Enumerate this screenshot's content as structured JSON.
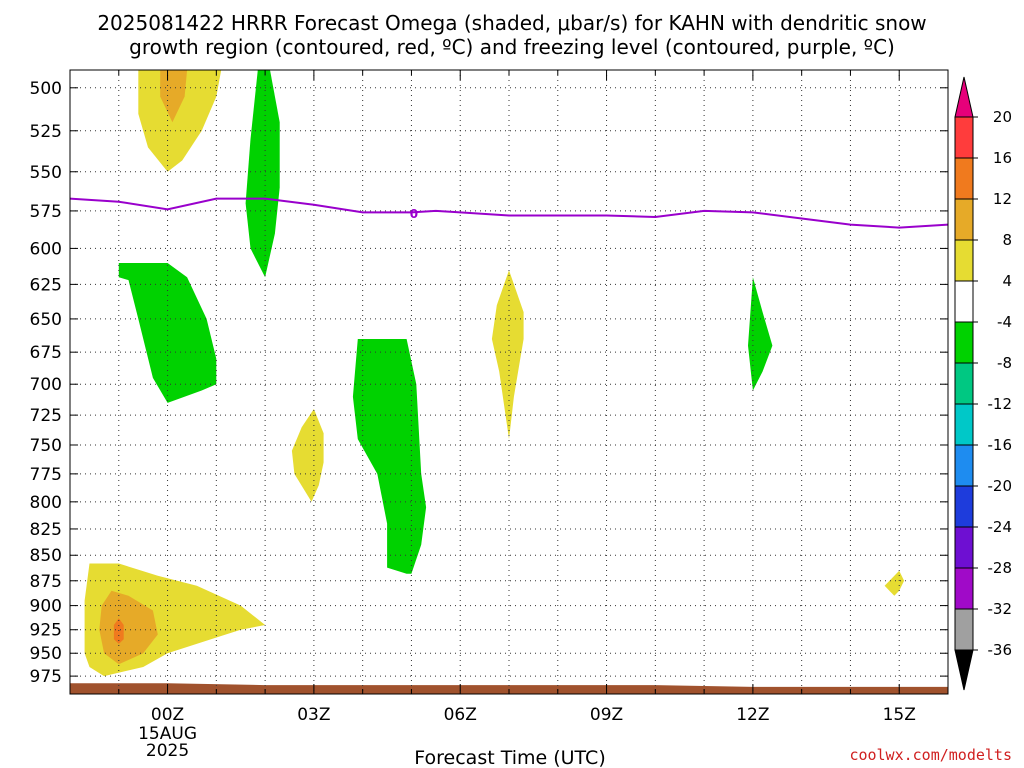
{
  "title": {
    "line1": "2025081422 HRRR Forecast Omega (shaded, μbar/s) for KAHN with dendritic snow",
    "line2": "growth region (contoured, red, ºC) and freezing level (contoured, purple, ºC)"
  },
  "credit": "coolwx.com/modelts",
  "chart_data": {
    "type": "heatmap",
    "xlabel": "Forecast Time (UTC)",
    "x_ticks": [
      {
        "hour": 0,
        "label": "00Z",
        "sub": [
          "15AUG",
          "2025"
        ]
      },
      {
        "hour": 3,
        "label": "03Z",
        "sub": []
      },
      {
        "hour": 6,
        "label": "06Z",
        "sub": []
      },
      {
        "hour": 9,
        "label": "09Z",
        "sub": []
      },
      {
        "hour": 12,
        "label": "12Z",
        "sub": []
      },
      {
        "hour": 15,
        "label": "15Z",
        "sub": []
      }
    ],
    "xlim": [
      -2,
      16
    ],
    "y_ticks": [
      500,
      525,
      550,
      575,
      600,
      625,
      650,
      675,
      700,
      725,
      750,
      775,
      800,
      825,
      850,
      875,
      900,
      925,
      950,
      975
    ],
    "ylim": [
      490,
      995
    ],
    "y_scale": "log-pressure",
    "grid": true,
    "colorbar": {
      "labels": [
        "20",
        "16",
        "12",
        "8",
        "4",
        "-4",
        "-8",
        "-12",
        "-16",
        "-20",
        "-24",
        "-28",
        "-32",
        "-36"
      ],
      "colors": [
        "#ff3c3c",
        "#f07a1e",
        "#e6aa28",
        "#e6dc32",
        "#ffffff",
        "#00d200",
        "#00c882",
        "#00c8c8",
        "#1e8cf0",
        "#1e3cdc",
        "#6e0fd2",
        "#a00ac8",
        "#a0a0a0"
      ],
      "top_color": "#e6007a",
      "bottom_color": "#000000"
    },
    "freezing_level": {
      "label": "0",
      "color": "#9900cc",
      "points": [
        [
          -2,
          567
        ],
        [
          -1,
          569
        ],
        [
          0,
          574
        ],
        [
          1,
          567
        ],
        [
          2,
          567
        ],
        [
          3,
          571
        ],
        [
          4,
          576
        ],
        [
          5,
          576
        ],
        [
          5.5,
          575
        ],
        [
          6,
          576
        ],
        [
          7,
          578
        ],
        [
          8,
          578
        ],
        [
          9,
          578
        ],
        [
          10,
          579
        ],
        [
          11,
          575
        ],
        [
          12,
          576
        ],
        [
          13,
          580
        ],
        [
          14,
          584
        ],
        [
          15,
          586
        ],
        [
          16,
          584
        ]
      ]
    },
    "shaded_regions": [
      {
        "value": 4,
        "color": "#e6dc32",
        "points": [
          [
            -0.5,
            490
          ],
          [
            0.3,
            490
          ],
          [
            1.1,
            490
          ],
          [
            1.0,
            505
          ],
          [
            0.7,
            525
          ],
          [
            0.3,
            543
          ],
          [
            0,
            550
          ],
          [
            -0.4,
            535
          ],
          [
            -0.6,
            515
          ],
          [
            -0.6,
            490
          ]
        ]
      },
      {
        "value": 8,
        "color": "#e6aa28",
        "points": [
          [
            -0.15,
            490
          ],
          [
            0.4,
            490
          ],
          [
            0.35,
            505
          ],
          [
            0.1,
            520
          ],
          [
            -0.15,
            505
          ]
        ]
      },
      {
        "value": -4,
        "color": "#00d200",
        "points": [
          [
            1.9,
            490
          ],
          [
            2.1,
            490
          ],
          [
            2.3,
            520
          ],
          [
            2.3,
            560
          ],
          [
            2.2,
            590
          ],
          [
            2,
            620
          ],
          [
            1.7,
            600
          ],
          [
            1.6,
            570
          ],
          [
            1.7,
            530
          ],
          [
            1.85,
            490
          ]
        ]
      },
      {
        "value": -4,
        "color": "#00d200",
        "points": [
          [
            -1,
            610
          ],
          [
            0,
            610
          ],
          [
            0.4,
            620
          ],
          [
            0.8,
            650
          ],
          [
            1,
            680
          ],
          [
            1,
            700
          ],
          [
            0.7,
            705
          ],
          [
            0,
            715
          ],
          [
            -0.3,
            695
          ],
          [
            -0.6,
            650
          ],
          [
            -0.8,
            622
          ],
          [
            -1,
            620
          ]
        ]
      },
      {
        "value": -4,
        "color": "#00d200",
        "points": [
          [
            3.9,
            665
          ],
          [
            4.9,
            665
          ],
          [
            5.1,
            700
          ],
          [
            5.2,
            775
          ],
          [
            5.3,
            805
          ],
          [
            5.2,
            840
          ],
          [
            5.0,
            868
          ],
          [
            4.9,
            868
          ],
          [
            4.5,
            862
          ],
          [
            4.5,
            820
          ],
          [
            4.3,
            775
          ],
          [
            3.9,
            745
          ],
          [
            3.8,
            710
          ]
        ]
      },
      {
        "value": -4,
        "color": "#00d200",
        "points": [
          [
            12,
            620
          ],
          [
            12.2,
            645
          ],
          [
            12.4,
            670
          ],
          [
            12.2,
            690
          ],
          [
            12,
            705
          ],
          [
            11.9,
            670
          ]
        ]
      },
      {
        "value": 4,
        "color": "#e6dc32",
        "points": [
          [
            7,
            615
          ],
          [
            7.3,
            645
          ],
          [
            7.3,
            665
          ],
          [
            7.1,
            710
          ],
          [
            7,
            745
          ],
          [
            6.8,
            690
          ],
          [
            6.65,
            665
          ],
          [
            6.75,
            640
          ]
        ]
      },
      {
        "value": 4,
        "color": "#e6dc32",
        "points": [
          [
            3.0,
            720
          ],
          [
            3.2,
            740
          ],
          [
            3.2,
            765
          ],
          [
            3.1,
            785
          ],
          [
            2.95,
            800
          ],
          [
            2.6,
            775
          ],
          [
            2.55,
            755
          ],
          [
            2.75,
            735
          ]
        ]
      },
      {
        "value": 4,
        "color": "#e6dc32",
        "points": [
          [
            15,
            865
          ],
          [
            15.1,
            875
          ],
          [
            15,
            885
          ],
          [
            14.9,
            890
          ],
          [
            14.7,
            880
          ]
        ]
      },
      {
        "value": 4,
        "color": "#e6dc32",
        "points": [
          [
            -1.6,
            858
          ],
          [
            -1,
            858
          ],
          [
            -0.2,
            870
          ],
          [
            0.6,
            880
          ],
          [
            1.5,
            900
          ],
          [
            2,
            920
          ],
          [
            1.5,
            925
          ],
          [
            0,
            950
          ],
          [
            -0.5,
            965
          ],
          [
            -1.3,
            975
          ],
          [
            -1.6,
            965
          ],
          [
            -1.7,
            950
          ],
          [
            -1.7,
            920
          ],
          [
            -1.7,
            895
          ]
        ]
      },
      {
        "value": 8,
        "color": "#e6aa28",
        "points": [
          [
            -1.15,
            885
          ],
          [
            -0.8,
            890
          ],
          [
            -0.3,
            905
          ],
          [
            -0.2,
            930
          ],
          [
            -0.5,
            950
          ],
          [
            -1,
            962
          ],
          [
            -1.3,
            950
          ],
          [
            -1.4,
            925
          ],
          [
            -1.35,
            900
          ]
        ]
      },
      {
        "value": 12,
        "color": "#f07a1e",
        "points": [
          [
            -1,
            913
          ],
          [
            -0.9,
            920
          ],
          [
            -0.9,
            935
          ],
          [
            -1,
            940
          ],
          [
            -1.1,
            935
          ],
          [
            -1.1,
            920
          ]
        ]
      }
    ],
    "terrain": {
      "color": "#a0522d",
      "top_pressure": [
        [
          -2,
          983
        ],
        [
          0,
          983
        ],
        [
          2,
          985
        ],
        [
          10,
          985
        ],
        [
          12,
          987
        ],
        [
          16,
          987
        ]
      ],
      "bottom_pressure": 995
    }
  }
}
